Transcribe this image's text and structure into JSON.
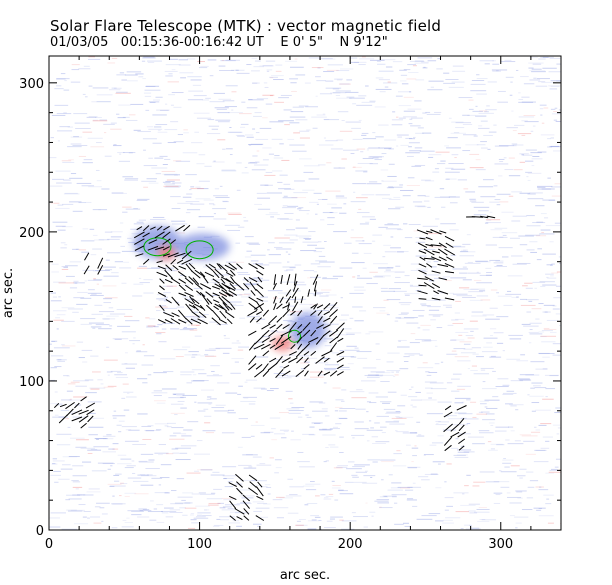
{
  "header": {
    "title": "Solar Flare Telescope (MTK) : vector magnetic field",
    "subtitle_date": "01/03/05",
    "subtitle_time": "00:15:36-00:16:42 UT",
    "subtitle_lon": "E 0' 5\"",
    "subtitle_lat": "N 9'12\""
  },
  "chart_data": {
    "type": "scatter",
    "title": "Solar Flare Telescope (MTK) : vector magnetic field",
    "xlabel": "arc sec.",
    "ylabel": "arc sec.",
    "xlim": [
      0,
      340
    ],
    "ylim": [
      0,
      318
    ],
    "xticks": [
      0,
      100,
      200,
      300
    ],
    "yticks": [
      0,
      100,
      200,
      300
    ],
    "xtick_labels": [
      "0",
      "100",
      "200",
      "300"
    ],
    "ytick_labels": [
      "0",
      "100",
      "200",
      "300"
    ],
    "background_colors": {
      "negative": "#7f8fe0",
      "positive": "#f08080"
    },
    "regions": [
      {
        "polarity": "negative",
        "x": 72,
        "y": 193,
        "rx": 16,
        "ry": 11
      },
      {
        "polarity": "negative",
        "x": 102,
        "y": 190,
        "rx": 18,
        "ry": 9
      },
      {
        "polarity": "negative",
        "x": 172,
        "y": 134,
        "rx": 12,
        "ry": 12
      },
      {
        "polarity": "positive",
        "x": 78,
        "y": 186,
        "rx": 6,
        "ry": 5
      },
      {
        "polarity": "positive",
        "x": 155,
        "y": 125,
        "rx": 7,
        "ry": 5
      }
    ],
    "contours": [
      {
        "color": "#00b000",
        "x": 72,
        "y": 190,
        "rx": 9,
        "ry": 6
      },
      {
        "color": "#00b000",
        "x": 100,
        "y": 188,
        "rx": 9,
        "ry": 6
      },
      {
        "color": "#00b000",
        "x": 163,
        "y": 130,
        "rx": 4,
        "ry": 4
      }
    ],
    "vector_clusters": [
      {
        "x": [
          60,
          95
        ],
        "y": [
          180,
          205
        ],
        "angle": 30
      },
      {
        "x": [
          75,
          120
        ],
        "y": [
          140,
          180
        ],
        "angle": -35
      },
      {
        "x": [
          95,
          140
        ],
        "y": [
          150,
          180
        ],
        "angle": -40
      },
      {
        "x": [
          135,
          195
        ],
        "y": [
          105,
          150
        ],
        "angle": 40
      },
      {
        "x": [
          150,
          180
        ],
        "y": [
          150,
          170
        ],
        "angle": 70
      },
      {
        "x": [
          248,
          268
        ],
        "y": [
          155,
          200
        ],
        "angle": -20
      },
      {
        "x": [
          265,
          278
        ],
        "y": [
          55,
          85
        ],
        "angle": 40
      },
      {
        "x": [
          5,
          28
        ],
        "y": [
          70,
          88
        ],
        "angle": 35
      },
      {
        "x": [
          122,
          142
        ],
        "y": [
          8,
          38
        ],
        "angle": -40
      },
      {
        "x": [
          25,
          35
        ],
        "y": [
          170,
          185
        ],
        "angle": 60
      },
      {
        "x": [
          280,
          295
        ],
        "y": [
          210,
          213
        ],
        "angle": 0
      }
    ]
  }
}
